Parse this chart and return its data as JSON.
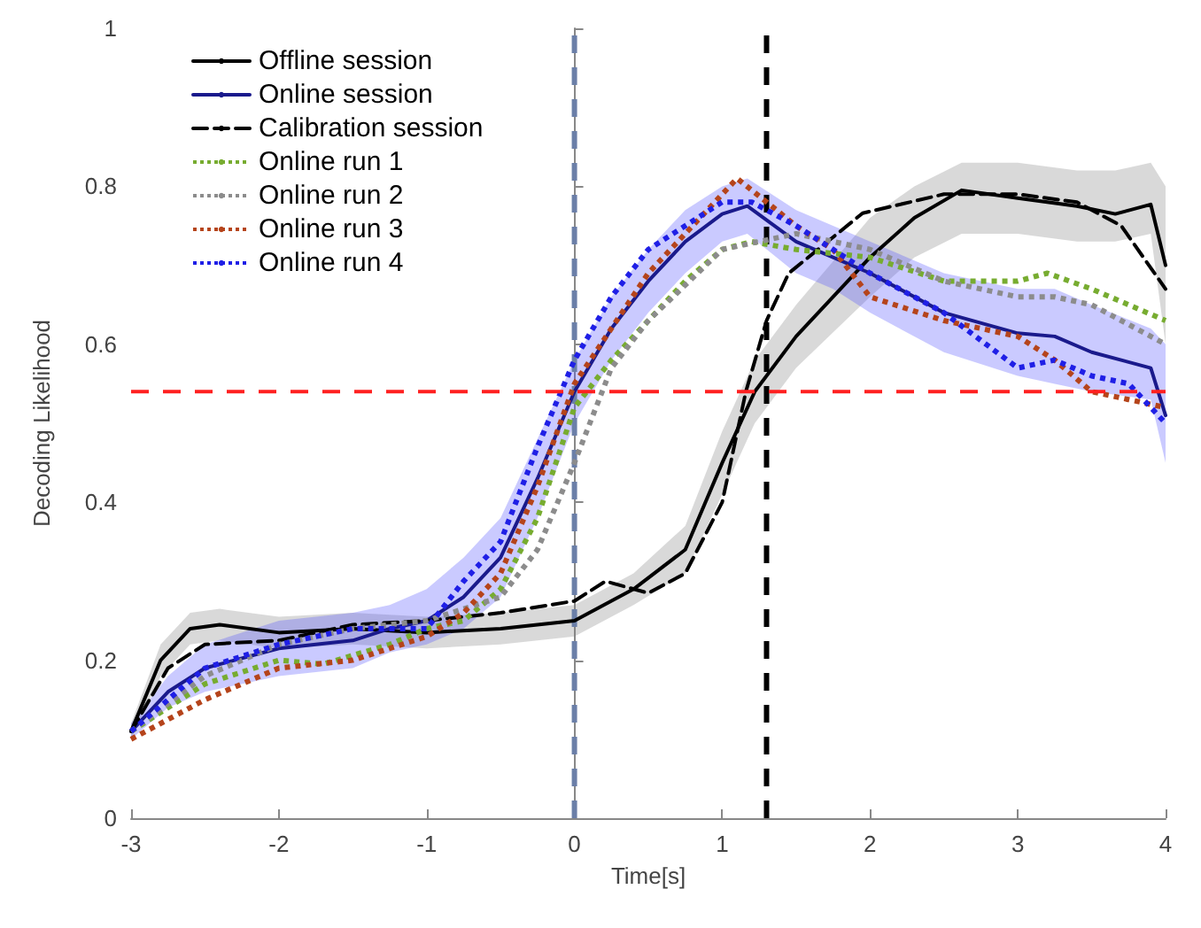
{
  "chart_data": {
    "type": "line",
    "xlabel": "Time[s]",
    "ylabel": "Decoding Likelihood",
    "xlim": [
      -3,
      4
    ],
    "ylim": [
      0,
      1
    ],
    "xticks": [
      -3,
      -2,
      -1,
      0,
      1,
      2,
      3,
      4
    ],
    "yticks": [
      0,
      0.2,
      0.4,
      0.6,
      0.8,
      1
    ],
    "grid": false,
    "legend": "top left",
    "marker": "none",
    "series": [
      {
        "name": "Offline session",
        "color": "#000000",
        "line_style": "solid",
        "x": [
          -3,
          -2.8,
          -2.6,
          -2.4,
          -2,
          -1.5,
          -1,
          -0.5,
          0,
          0.4,
          0.75,
          1,
          1.22,
          1.5,
          2,
          2.3,
          2.62,
          3,
          3.4,
          3.66,
          3.9,
          4
        ],
        "values": [
          0.11,
          0.2,
          0.24,
          0.245,
          0.235,
          0.24,
          0.235,
          0.24,
          0.25,
          0.29,
          0.34,
          0.45,
          0.54,
          0.61,
          0.71,
          0.76,
          0.795,
          0.785,
          0.775,
          0.765,
          0.777,
          0.7
        ],
        "lower": [
          0.1,
          0.18,
          0.22,
          0.225,
          0.215,
          0.22,
          0.215,
          0.22,
          0.23,
          0.27,
          0.31,
          0.41,
          0.5,
          0.57,
          0.66,
          0.71,
          0.74,
          0.74,
          0.73,
          0.73,
          0.74,
          0.6
        ],
        "upper": [
          0.12,
          0.22,
          0.26,
          0.265,
          0.255,
          0.26,
          0.255,
          0.26,
          0.27,
          0.31,
          0.37,
          0.49,
          0.58,
          0.65,
          0.76,
          0.8,
          0.83,
          0.83,
          0.82,
          0.82,
          0.83,
          0.8
        ]
      },
      {
        "name": "Online session",
        "color": "#1a1a8c",
        "line_style": "solid",
        "x": [
          -3,
          -2.75,
          -2.5,
          -2,
          -1.5,
          -1.25,
          -1,
          -0.75,
          -0.5,
          -0.25,
          0,
          0.25,
          0.5,
          0.75,
          1,
          1.17,
          1.5,
          1.75,
          2,
          2.5,
          3,
          3.25,
          3.5,
          3.9,
          4
        ],
        "values": [
          0.11,
          0.16,
          0.19,
          0.215,
          0.225,
          0.24,
          0.25,
          0.28,
          0.33,
          0.43,
          0.54,
          0.62,
          0.68,
          0.73,
          0.765,
          0.775,
          0.73,
          0.71,
          0.69,
          0.64,
          0.614,
          0.61,
          0.59,
          0.57,
          0.51
        ],
        "lower": [
          0.1,
          0.14,
          0.16,
          0.18,
          0.19,
          0.21,
          0.22,
          0.24,
          0.28,
          0.38,
          0.5,
          0.58,
          0.64,
          0.69,
          0.73,
          0.74,
          0.69,
          0.67,
          0.64,
          0.59,
          0.56,
          0.55,
          0.54,
          0.53,
          0.45
        ],
        "upper": [
          0.12,
          0.18,
          0.22,
          0.25,
          0.26,
          0.27,
          0.29,
          0.33,
          0.38,
          0.48,
          0.58,
          0.66,
          0.72,
          0.77,
          0.8,
          0.81,
          0.77,
          0.75,
          0.73,
          0.69,
          0.67,
          0.67,
          0.65,
          0.62,
          0.6
        ]
      },
      {
        "name": "Calibration session",
        "color": "#000000",
        "line_style": "dashed",
        "x": [
          -3,
          -2.75,
          -2.5,
          -2,
          -1.5,
          -1,
          -0.5,
          0,
          0.21,
          0.5,
          0.75,
          1,
          1.16,
          1.3,
          1.45,
          1.95,
          2.5,
          3,
          3.4,
          3.7,
          4
        ],
        "values": [
          0.11,
          0.19,
          0.22,
          0.225,
          0.245,
          0.25,
          0.26,
          0.275,
          0.3,
          0.285,
          0.31,
          0.4,
          0.54,
          0.63,
          0.69,
          0.766,
          0.79,
          0.79,
          0.78,
          0.75,
          0.67
        ]
      },
      {
        "name": "Online run 1",
        "color": "#77ac30",
        "line_style": "dotted",
        "x": [
          -3,
          -2.5,
          -2,
          -1.7,
          -1.25,
          -1,
          -0.75,
          -0.5,
          -0.25,
          0,
          0.25,
          0.5,
          0.75,
          1,
          1.2,
          1.5,
          2,
          2.5,
          3,
          3.2,
          3.5,
          4
        ],
        "values": [
          0.11,
          0.17,
          0.2,
          0.195,
          0.22,
          0.24,
          0.25,
          0.29,
          0.38,
          0.52,
          0.58,
          0.63,
          0.68,
          0.72,
          0.73,
          0.72,
          0.71,
          0.68,
          0.68,
          0.69,
          0.67,
          0.63
        ]
      },
      {
        "name": "Online run 2",
        "color": "#8c8c8c",
        "line_style": "dotted",
        "x": [
          -3,
          -2.5,
          -2,
          -1.5,
          -1,
          -0.5,
          -0.25,
          0,
          0.25,
          0.5,
          1,
          1.25,
          1.5,
          2,
          2.5,
          3,
          3.25,
          3.5,
          4
        ],
        "values": [
          0.11,
          0.18,
          0.22,
          0.24,
          0.25,
          0.28,
          0.34,
          0.45,
          0.57,
          0.63,
          0.72,
          0.73,
          0.74,
          0.72,
          0.68,
          0.66,
          0.66,
          0.65,
          0.6
        ]
      },
      {
        "name": "Online run 3",
        "color": "#b5441b",
        "line_style": "dotted",
        "x": [
          -3,
          -2.5,
          -2,
          -1.5,
          -1,
          -0.75,
          -0.5,
          -0.25,
          0,
          0.5,
          1,
          1.1,
          1.5,
          1.75,
          2,
          2.5,
          3,
          3.25,
          3.5,
          3.75,
          4
        ],
        "values": [
          0.1,
          0.15,
          0.19,
          0.2,
          0.23,
          0.26,
          0.31,
          0.42,
          0.55,
          0.69,
          0.79,
          0.81,
          0.75,
          0.72,
          0.66,
          0.63,
          0.61,
          0.58,
          0.54,
          0.53,
          0.52
        ]
      },
      {
        "name": "Online run 4",
        "color": "#1f1fe6",
        "line_style": "dotted",
        "x": [
          -3,
          -2.5,
          -2,
          -1.5,
          -1,
          -0.75,
          -0.5,
          -0.25,
          0,
          0.25,
          0.5,
          1,
          1.2,
          1.5,
          2,
          2.5,
          3,
          3.25,
          3.5,
          3.75,
          4
        ],
        "values": [
          0.11,
          0.19,
          0.22,
          0.24,
          0.24,
          0.3,
          0.35,
          0.47,
          0.58,
          0.66,
          0.72,
          0.78,
          0.78,
          0.75,
          0.69,
          0.64,
          0.57,
          0.58,
          0.56,
          0.55,
          0.5
        ]
      }
    ],
    "ref_lines": [
      {
        "axis": "x",
        "value": 0,
        "color": "#6b7fa8",
        "line_style": "dashed"
      },
      {
        "axis": "x",
        "value": 1.3,
        "color": "#000000",
        "line_style": "dashed"
      },
      {
        "axis": "y",
        "value": 0.54,
        "color": "#ff2020",
        "line_style": "dashed"
      }
    ]
  }
}
